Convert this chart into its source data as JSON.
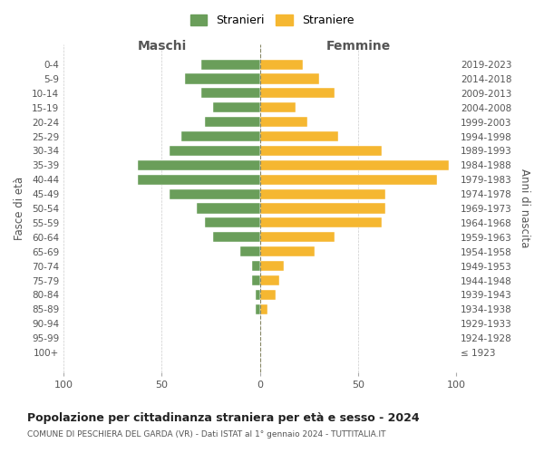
{
  "age_groups": [
    "100+",
    "95-99",
    "90-94",
    "85-89",
    "80-84",
    "75-79",
    "70-74",
    "65-69",
    "60-64",
    "55-59",
    "50-54",
    "45-49",
    "40-44",
    "35-39",
    "30-34",
    "25-29",
    "20-24",
    "15-19",
    "10-14",
    "5-9",
    "0-4"
  ],
  "birth_years": [
    "≤ 1923",
    "1924-1928",
    "1929-1933",
    "1934-1938",
    "1939-1943",
    "1944-1948",
    "1949-1953",
    "1954-1958",
    "1959-1963",
    "1964-1968",
    "1969-1973",
    "1974-1978",
    "1979-1983",
    "1984-1988",
    "1989-1993",
    "1994-1998",
    "1999-2003",
    "2004-2008",
    "2009-2013",
    "2014-2018",
    "2019-2023"
  ],
  "maschi": [
    0,
    0,
    0,
    2,
    2,
    4,
    4,
    10,
    24,
    28,
    32,
    46,
    62,
    62,
    46,
    40,
    28,
    24,
    30,
    38,
    30
  ],
  "femmine": [
    0,
    0,
    0,
    4,
    8,
    10,
    12,
    28,
    38,
    62,
    64,
    64,
    90,
    96,
    62,
    40,
    24,
    18,
    38,
    30,
    22
  ],
  "color_maschi": "#6a9e5a",
  "color_femmine": "#f5b731",
  "title": "Popolazione per cittadinanza straniera per età e sesso - 2024",
  "subtitle": "COMUNE DI PESCHIERA DEL GARDA (VR) - Dati ISTAT al 1° gennaio 2024 - TUTTITALIA.IT",
  "xlabel_left": "Maschi",
  "xlabel_right": "Femmine",
  "ylabel_left": "Fasce di età",
  "ylabel_right": "Anni di nascita",
  "legend_stranieri": "Stranieri",
  "legend_straniere": "Straniere",
  "xlim": 100,
  "background_color": "#ffffff",
  "grid_color": "#cccccc"
}
